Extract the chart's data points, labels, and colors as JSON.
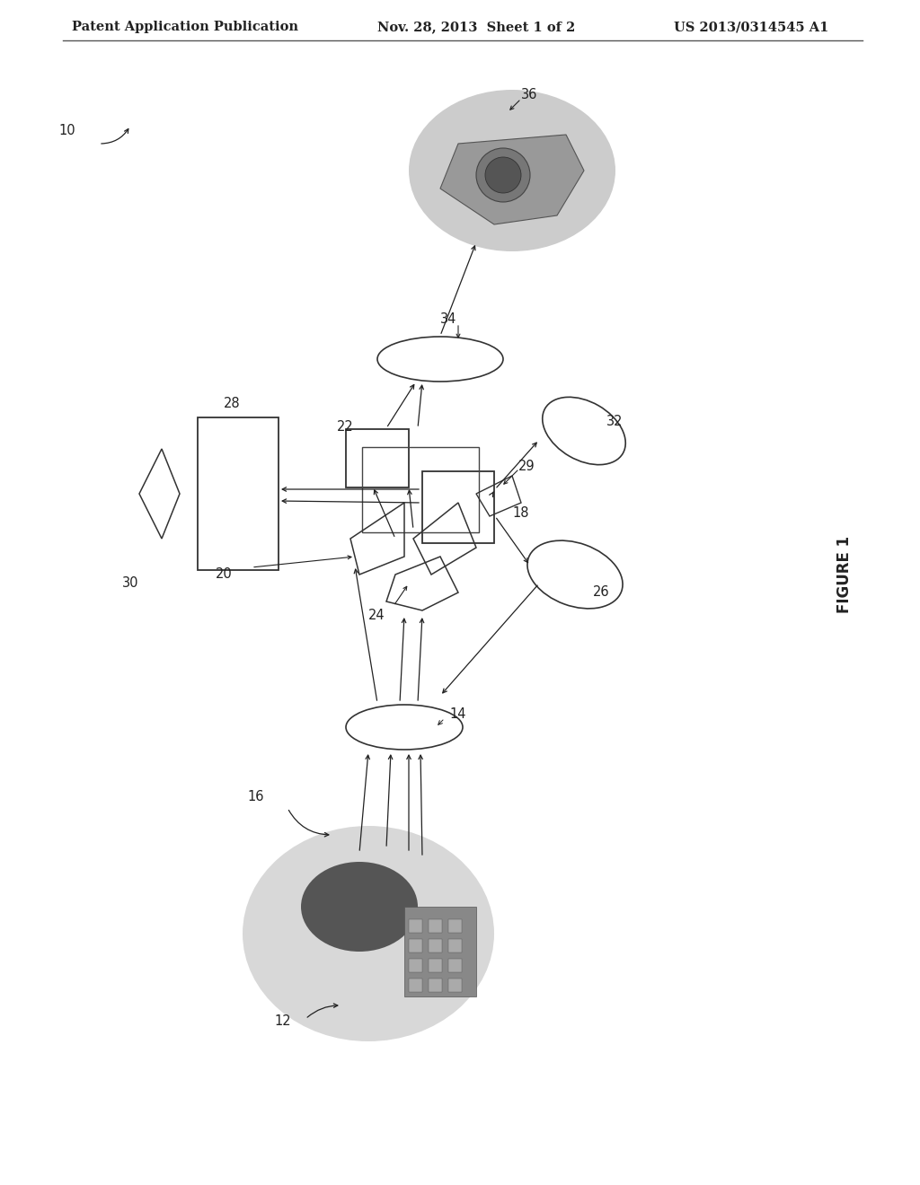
{
  "header_left": "Patent Application Publication",
  "header_mid": "Nov. 28, 2013  Sheet 1 of 2",
  "header_right": "US 2013/0314545 A1",
  "figure_label": "FIGURE 1",
  "bg_color": "#ffffff",
  "line_color": "#333333",
  "label_color": "#222222",
  "header_fontsize": 10.5,
  "label_fontsize": 10.5
}
